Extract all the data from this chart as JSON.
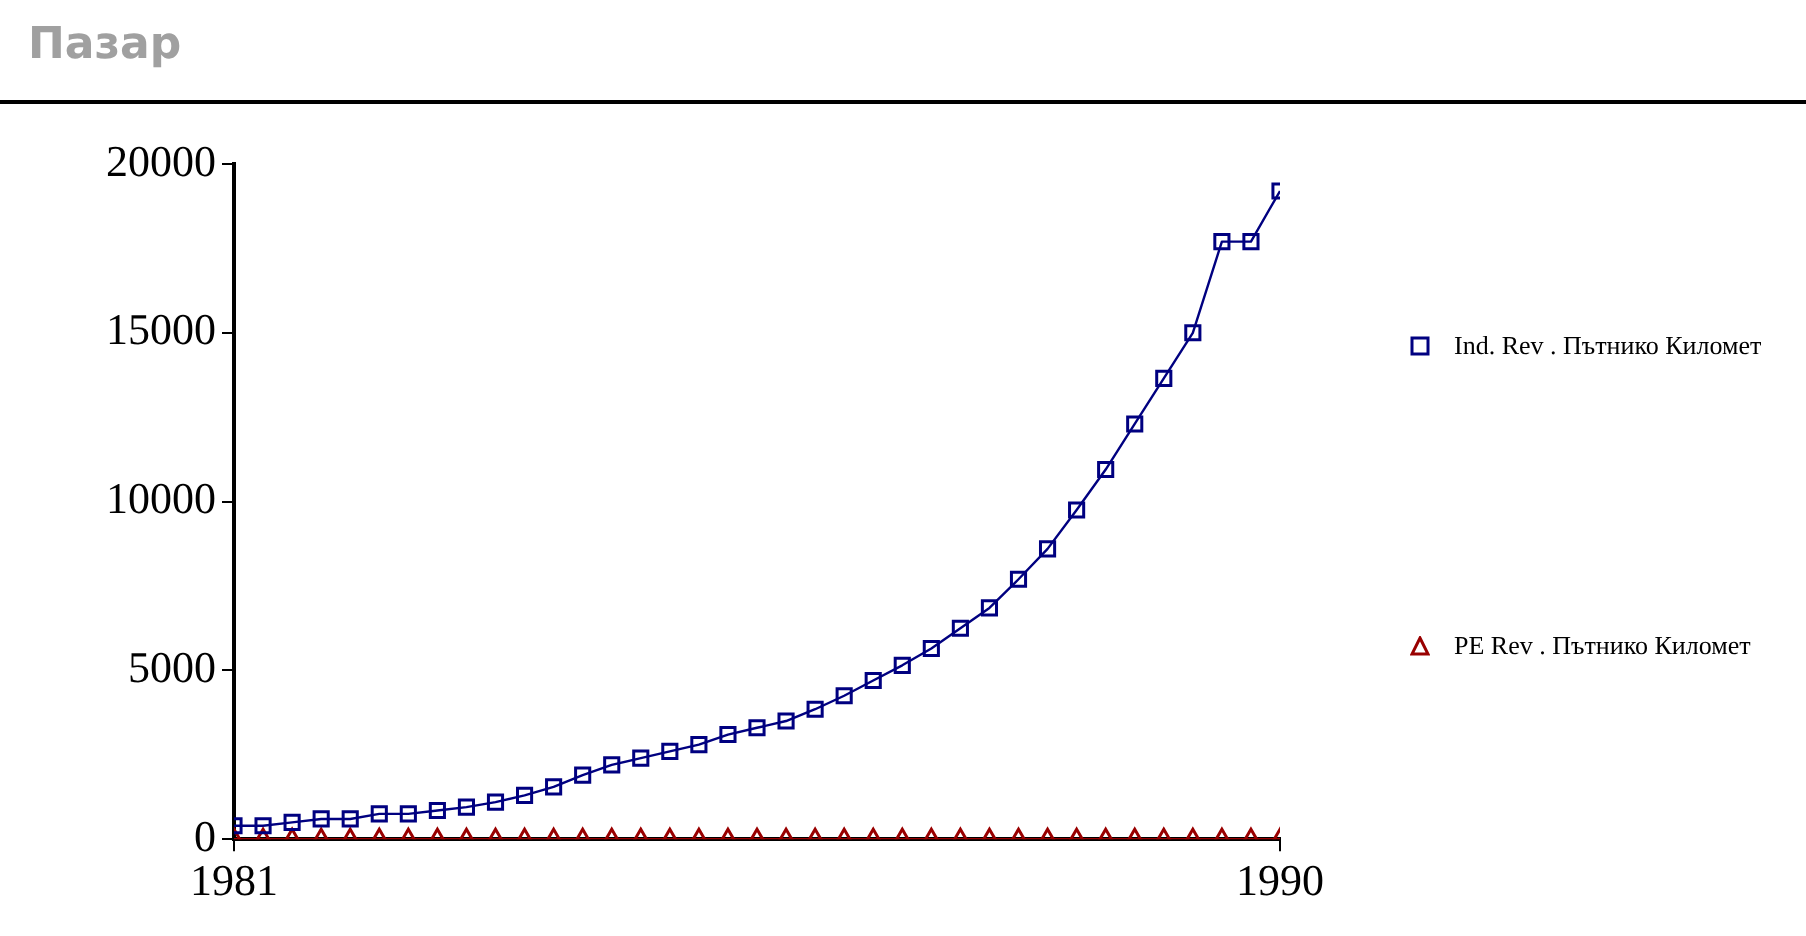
{
  "chart_data": {
    "type": "line",
    "title": "Пазар",
    "x": [
      1981,
      1981.25,
      1981.5,
      1981.75,
      1982,
      1982.25,
      1982.5,
      1982.75,
      1983,
      1983.25,
      1983.5,
      1983.75,
      1984,
      1984.25,
      1984.5,
      1984.75,
      1985,
      1985.25,
      1985.5,
      1985.75,
      1986,
      1986.25,
      1986.5,
      1986.75,
      1987,
      1987.25,
      1987.5,
      1987.75,
      1988,
      1988.25,
      1988.5,
      1988.75,
      1989,
      1989.25,
      1989.5,
      1989.75,
      1990
    ],
    "series": [
      {
        "name": "Ind. Rev . Пътнико Километ",
        "color": "#000080",
        "marker": "square",
        "values": [
          400,
          400,
          500,
          600,
          600,
          750,
          750,
          850,
          950,
          1100,
          1300,
          1550,
          1900,
          2200,
          2400,
          2600,
          2800,
          3100,
          3300,
          3500,
          3850,
          4250,
          4700,
          5150,
          5650,
          6250,
          6850,
          7700,
          8600,
          9750,
          10950,
          12300,
          13650,
          15000,
          17700,
          17700,
          19200
        ]
      },
      {
        "name": "PE Rev . Пътнико Километ",
        "color": "#990000",
        "marker": "triangle",
        "values": [
          0,
          0,
          0,
          0,
          0,
          0,
          0,
          0,
          0,
          0,
          0,
          0,
          0,
          0,
          0,
          0,
          0,
          0,
          0,
          0,
          0,
          0,
          0,
          0,
          0,
          0,
          0,
          0,
          0,
          0,
          0,
          0,
          0,
          0,
          0,
          0,
          0
        ]
      }
    ],
    "xlim": [
      1981,
      1990
    ],
    "xticks": [
      1981,
      1990
    ],
    "ylim": [
      0,
      20000
    ],
    "yticks": [
      0,
      5000,
      10000,
      15000,
      20000
    ],
    "grid": false,
    "legend": "right",
    "line_style": "solid"
  }
}
